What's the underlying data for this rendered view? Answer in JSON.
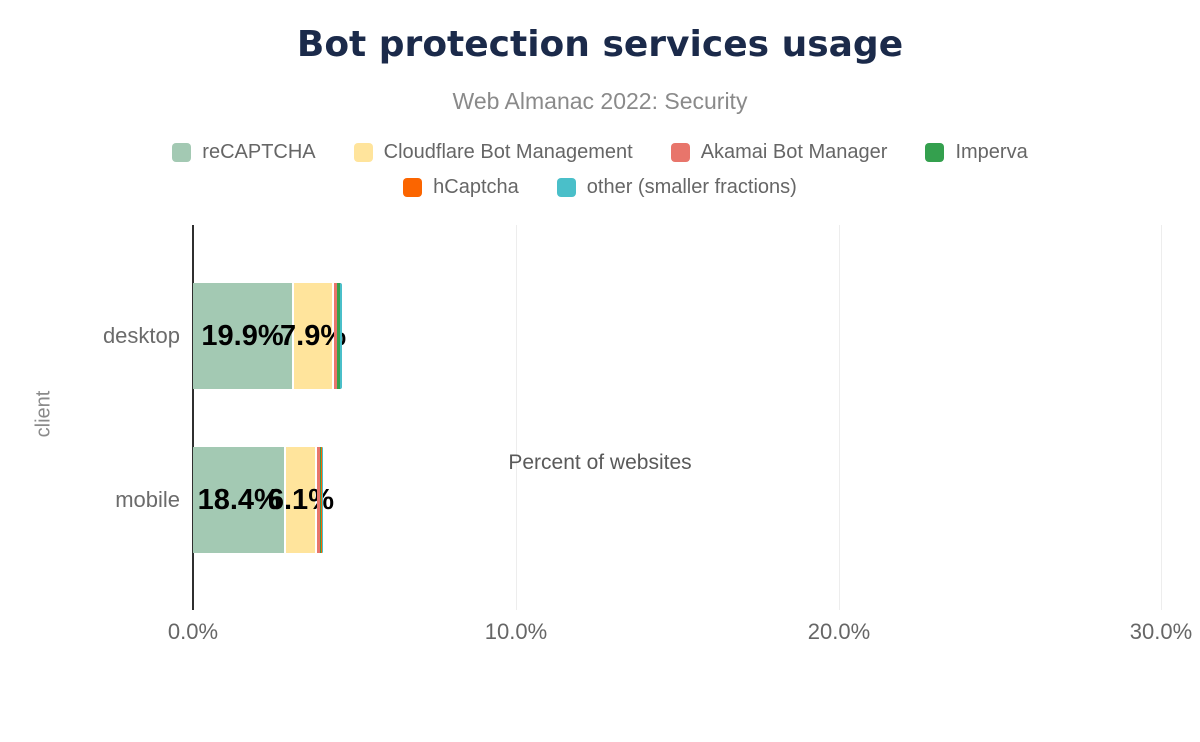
{
  "title": "Bot protection services usage",
  "subtitle": "Web Almanac 2022: Security",
  "colors": {
    "title": "#1b2a4a",
    "subtitle": "#8a8a8a",
    "axis_line": "#2f2f2f",
    "gridline": "#ededed",
    "label_text": "#666666",
    "data_label": "#000000"
  },
  "chart_data": {
    "type": "bar",
    "orientation": "horizontal",
    "stacked": true,
    "title": "Bot protection services usage",
    "subtitle": "Web Almanac 2022: Security",
    "categories": [
      "desktop",
      "mobile"
    ],
    "series": [
      {
        "name": "reCAPTCHA",
        "color": "#a3c9b3",
        "values": [
          19.9,
          18.4
        ]
      },
      {
        "name": "Cloudflare Bot Management",
        "color": "#ffe49c",
        "values": [
          7.9,
          6.1
        ]
      },
      {
        "name": "Akamai Bot Manager",
        "color": "#e8756b",
        "values": [
          0.6,
          0.5
        ]
      },
      {
        "name": "Imperva",
        "color": "#34a04e",
        "values": [
          0.5,
          0.3
        ]
      },
      {
        "name": "hCaptcha",
        "color": "#fb6500",
        "values": [
          0.1,
          0.2
        ]
      },
      {
        "name": "other (smaller fractions)",
        "color": "#4abfc9",
        "values": [
          0.3,
          0.2
        ]
      }
    ],
    "visible_data_labels": {
      "desktop": [
        "19.9%",
        "7.9%"
      ],
      "mobile": [
        "18.4%",
        "6.1%"
      ]
    },
    "data_label_min_value": 2,
    "xlabel": "Percent of websites",
    "ylabel": "client",
    "xlim": [
      0,
      30
    ],
    "x_ticks": [
      "0.0%",
      "10.0%",
      "20.0%",
      "30.0%"
    ],
    "grid": "vertical",
    "legend_position": "top",
    "legend_rows": [
      [
        "reCAPTCHA",
        "Cloudflare Bot Management",
        "Akamai Bot Manager",
        "Imperva"
      ],
      [
        "hCaptcha",
        "other (smaller fractions)"
      ]
    ]
  }
}
